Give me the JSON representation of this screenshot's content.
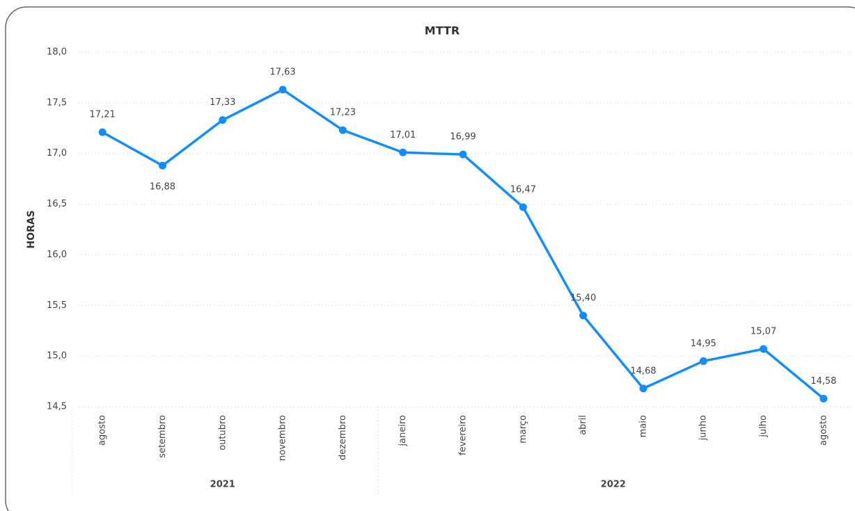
{
  "chart_data": {
    "type": "line",
    "title": "MTTR",
    "y_label": "HORAS",
    "groups": [
      {
        "name": "2021",
        "categories": [
          "agosto",
          "setembro",
          "outubro",
          "novembro",
          "dezembro"
        ]
      },
      {
        "name": "2022",
        "categories": [
          "janeiro",
          "fevereiro",
          "março",
          "abril",
          "maio",
          "junho",
          "julho",
          "agosto"
        ]
      }
    ],
    "series": [
      {
        "name": "MTTR",
        "color": "#118DFF",
        "values": [
          17.21,
          16.88,
          17.33,
          17.63,
          17.23,
          17.01,
          16.99,
          16.47,
          15.4,
          14.68,
          14.95,
          15.07,
          14.58
        ],
        "value_labels": [
          "17,21",
          "16,88",
          "17,33",
          "17,63",
          "17,23",
          "17,01",
          "16,99",
          "16,47",
          "15,40",
          "14,68",
          "14,95",
          "15,07",
          "14,58"
        ]
      }
    ],
    "ylim": [
      14.5,
      18.0
    ],
    "yticks": [
      {
        "value": 14.5,
        "label": "14,5"
      },
      {
        "value": 15.0,
        "label": "15,0"
      },
      {
        "value": 15.5,
        "label": "15,5"
      },
      {
        "value": 16.0,
        "label": "16,0"
      },
      {
        "value": 16.5,
        "label": "16,5"
      },
      {
        "value": 17.0,
        "label": "17,0"
      },
      {
        "value": 17.5,
        "label": "17,5"
      },
      {
        "value": 18.0,
        "label": "18,0"
      }
    ],
    "grid": true
  }
}
